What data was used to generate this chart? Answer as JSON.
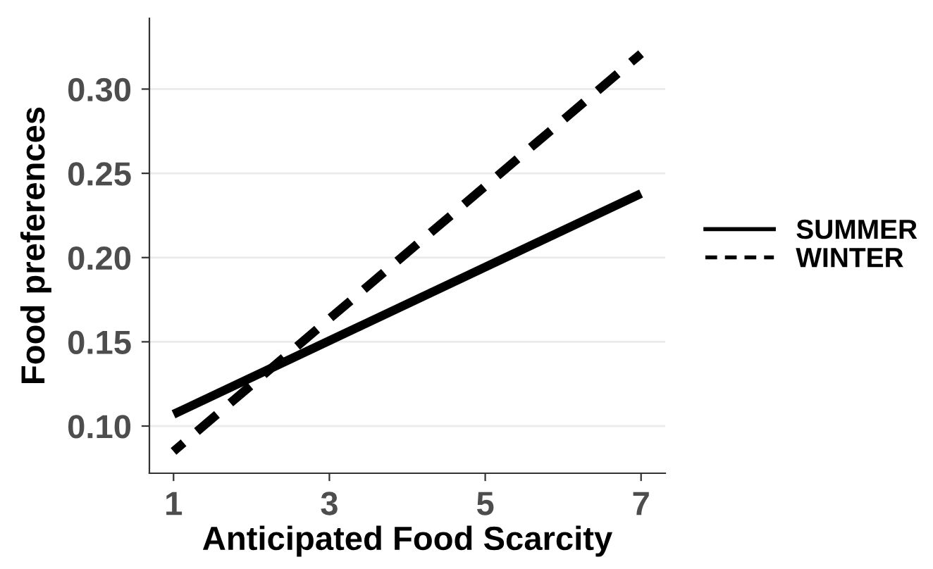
{
  "chart_data": {
    "type": "line",
    "xlabel": "Anticipated Food Scarcity",
    "ylabel": "Food preferences",
    "x": [
      1,
      7
    ],
    "series": [
      {
        "name": "SUMMER",
        "color": "#000000",
        "values": [
          0.107,
          0.238
        ],
        "line_style": "solid"
      },
      {
        "name": "WINTER",
        "color": "#000000",
        "values": [
          0.085,
          0.321
        ],
        "line_style": "dashed"
      }
    ],
    "xlim": [
      0.69,
      7.31
    ],
    "xticks": [
      1,
      3,
      5,
      7
    ],
    "ylim": [
      0.072,
      0.342
    ],
    "yticks": [
      {
        "value": 0.1,
        "label": "0.10"
      },
      {
        "value": 0.15,
        "label": "0.15"
      },
      {
        "value": 0.2,
        "label": "0.20"
      },
      {
        "value": 0.25,
        "label": "0.25"
      },
      {
        "value": 0.3,
        "label": "0.30"
      }
    ],
    "grid": "y",
    "legend": "right",
    "marker": "none"
  }
}
